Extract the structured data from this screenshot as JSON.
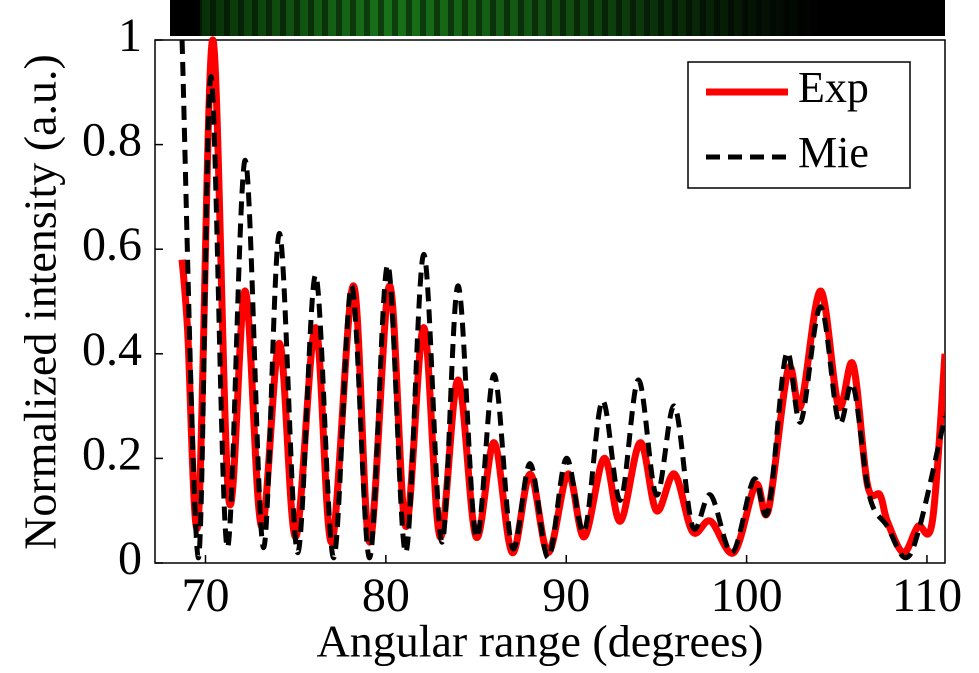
{
  "chart_data": {
    "type": "line",
    "xlabel": "Angular range (degrees)",
    "ylabel": "Normalized intensity (a.u.)",
    "xlim": [
      67.2,
      111
    ],
    "ylim": [
      0,
      1
    ],
    "xticks": [
      70,
      80,
      90,
      100,
      110
    ],
    "yticks": [
      0,
      0.2,
      0.4,
      0.6,
      0.8,
      1
    ],
    "legend": "upper right",
    "series": [
      {
        "name": "Exp",
        "color": "#ff0000",
        "dash": "solid",
        "x": [
          68.7,
          69.0,
          69.6,
          70.4,
          71.3,
          72.2,
          73.1,
          74.1,
          75.0,
          76.1,
          77.0,
          78.2,
          79.1,
          80.2,
          81.1,
          82.1,
          83.0,
          84.0,
          85.0,
          86.0,
          87.0,
          88.0,
          89.0,
          90.1,
          91.0,
          92.1,
          93.0,
          94.1,
          95.0,
          96.0,
          97.0,
          98.0,
          99.3,
          100.5,
          101.2,
          102.3,
          103.0,
          104.1,
          105.1,
          105.9,
          106.7,
          107.4,
          107.8,
          108.7,
          109.5,
          110.3,
          111.0
        ],
        "values": [
          0.58,
          0.45,
          0.08,
          1.0,
          0.12,
          0.52,
          0.07,
          0.42,
          0.05,
          0.45,
          0.04,
          0.53,
          0.04,
          0.53,
          0.07,
          0.45,
          0.05,
          0.35,
          0.05,
          0.23,
          0.02,
          0.17,
          0.02,
          0.17,
          0.05,
          0.2,
          0.08,
          0.23,
          0.1,
          0.17,
          0.06,
          0.08,
          0.02,
          0.15,
          0.1,
          0.37,
          0.3,
          0.52,
          0.3,
          0.38,
          0.15,
          0.13,
          0.08,
          0.02,
          0.07,
          0.08,
          0.4
        ]
      },
      {
        "name": "Mie",
        "color": "#000000",
        "dash": "dashed",
        "x": [
          68.7,
          69.6,
          70.3,
          71.2,
          72.2,
          73.2,
          74.1,
          75.1,
          76.1,
          77.1,
          78.1,
          79.1,
          80.1,
          81.1,
          82.1,
          83.1,
          84.0,
          85.0,
          86.0,
          87.0,
          88.0,
          89.0,
          90.0,
          91.0,
          92.0,
          93.0,
          94.0,
          95.0,
          96.0,
          97.0,
          98.0,
          99.2,
          100.4,
          101.2,
          102.2,
          103.0,
          104.1,
          105.1,
          105.9,
          106.8,
          107.8,
          108.8,
          109.6,
          111.0
        ],
        "values": [
          1.0,
          0.01,
          0.93,
          0.03,
          0.77,
          0.03,
          0.63,
          0.02,
          0.55,
          0.01,
          0.53,
          0.01,
          0.57,
          0.02,
          0.59,
          0.04,
          0.53,
          0.05,
          0.36,
          0.03,
          0.19,
          0.01,
          0.2,
          0.06,
          0.31,
          0.12,
          0.35,
          0.13,
          0.3,
          0.07,
          0.13,
          0.02,
          0.16,
          0.1,
          0.4,
          0.27,
          0.49,
          0.27,
          0.34,
          0.13,
          0.07,
          0.01,
          0.07,
          0.28
        ]
      }
    ]
  }
}
